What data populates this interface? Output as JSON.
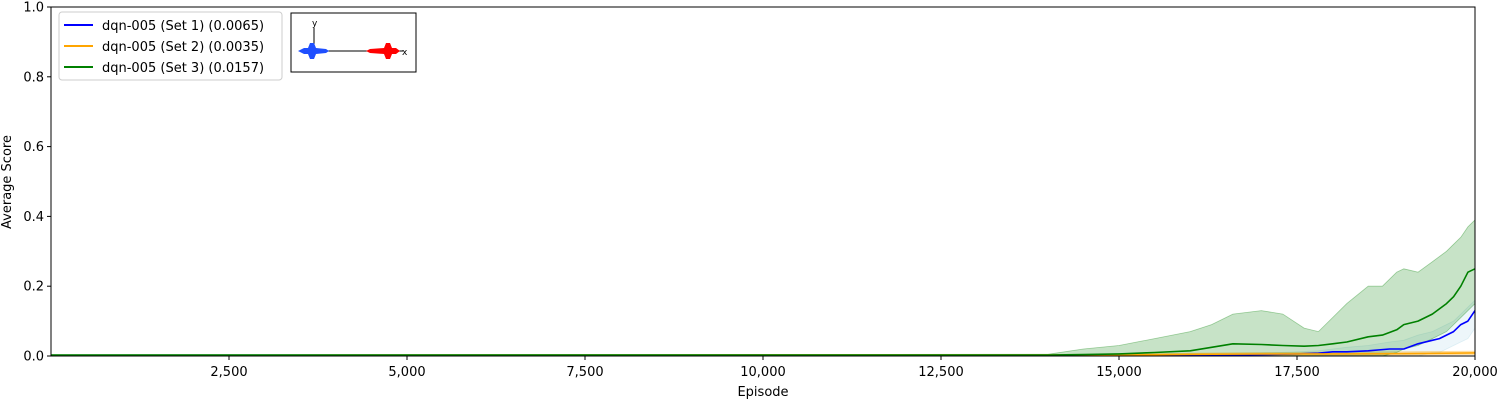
{
  "chart_data": {
    "type": "line",
    "title": "",
    "xlabel": "Episode",
    "ylabel": "Average Score",
    "xlim": [
      0,
      20000
    ],
    "ylim": [
      0,
      1.0
    ],
    "grid": false,
    "legend_position": "top-left",
    "x_ticks": [
      {
        "value": 2500,
        "label": "2,500"
      },
      {
        "value": 5000,
        "label": "5,000"
      },
      {
        "value": 7500,
        "label": "7,500"
      },
      {
        "value": 10000,
        "label": "10,000"
      },
      {
        "value": 12500,
        "label": "12,500"
      },
      {
        "value": 15000,
        "label": "15,000"
      },
      {
        "value": 17500,
        "label": "17,500"
      },
      {
        "value": 20000,
        "label": "20,000"
      }
    ],
    "y_ticks": [
      {
        "value": 0.0,
        "label": "0.0"
      },
      {
        "value": 0.2,
        "label": "0.2"
      },
      {
        "value": 0.4,
        "label": "0.4"
      },
      {
        "value": 0.6,
        "label": "0.6"
      },
      {
        "value": 0.8,
        "label": "0.8"
      },
      {
        "value": 1.0,
        "label": "1.0"
      }
    ],
    "series": [
      {
        "name": "dqn-005 (Set 1) (0.0065)",
        "color": "#0000ff",
        "band_color": "#add8e6",
        "x": [
          0,
          14000,
          15000,
          16000,
          17000,
          17500,
          17800,
          18000,
          18200,
          18500,
          18800,
          19000,
          19200,
          19400,
          19500,
          19600,
          19700,
          19800,
          19900,
          20000
        ],
        "y": [
          0.002,
          0.002,
          0.002,
          0.002,
          0.004,
          0.006,
          0.008,
          0.012,
          0.012,
          0.015,
          0.02,
          0.02,
          0.035,
          0.045,
          0.05,
          0.06,
          0.07,
          0.09,
          0.1,
          0.13
        ],
        "upper": [
          0.002,
          0.002,
          0.003,
          0.004,
          0.008,
          0.012,
          0.015,
          0.02,
          0.025,
          0.03,
          0.04,
          0.045,
          0.06,
          0.07,
          0.08,
          0.09,
          0.1,
          0.12,
          0.14,
          0.16
        ],
        "lower": [
          0,
          0,
          0,
          0,
          0,
          0,
          0,
          0,
          0,
          0,
          0,
          0,
          0,
          0.01,
          0.01,
          0.02,
          0.03,
          0.04,
          0.05,
          0.08
        ]
      },
      {
        "name": "dqn-005 (Set 2) (0.0035)",
        "color": "#ffa500",
        "band_color": "#ffa500",
        "x": [
          0,
          15000,
          16000,
          17000,
          18000,
          19000,
          20000
        ],
        "y": [
          0.002,
          0.003,
          0.005,
          0.006,
          0.006,
          0.007,
          0.009
        ],
        "upper": [
          0.003,
          0.005,
          0.008,
          0.01,
          0.011,
          0.012,
          0.014
        ],
        "lower": [
          0,
          0,
          0.001,
          0.002,
          0.002,
          0.003,
          0.004
        ]
      },
      {
        "name": "dqn-005 (Set 3) (0.0157)",
        "color": "#008000",
        "band_color": "#008000",
        "x": [
          0,
          14000,
          14500,
          15000,
          15500,
          16000,
          16300,
          16600,
          17000,
          17300,
          17600,
          17800,
          18000,
          18200,
          18500,
          18700,
          18900,
          19000,
          19200,
          19400,
          19600,
          19700,
          19800,
          19900,
          20000
        ],
        "y": [
          0.003,
          0.003,
          0.004,
          0.006,
          0.01,
          0.015,
          0.025,
          0.035,
          0.033,
          0.03,
          0.028,
          0.03,
          0.035,
          0.04,
          0.055,
          0.06,
          0.075,
          0.09,
          0.1,
          0.12,
          0.15,
          0.17,
          0.2,
          0.24,
          0.25
        ],
        "upper": [
          0.004,
          0.005,
          0.02,
          0.03,
          0.05,
          0.07,
          0.09,
          0.12,
          0.13,
          0.12,
          0.08,
          0.07,
          0.11,
          0.15,
          0.2,
          0.2,
          0.24,
          0.25,
          0.24,
          0.27,
          0.3,
          0.32,
          0.34,
          0.37,
          0.39
        ],
        "lower": [
          0.002,
          0.001,
          0,
          0,
          0,
          0,
          0,
          0,
          0,
          0,
          0,
          0,
          0,
          0,
          0,
          0,
          0.01,
          0.02,
          0.03,
          0.05,
          0.07,
          0.09,
          0.11,
          0.13,
          0.15
        ]
      }
    ]
  },
  "inset": {
    "axis_x_label": "x",
    "axis_y_label": "y",
    "agent_colors": [
      "#1f4fff",
      "#ff0000"
    ]
  }
}
